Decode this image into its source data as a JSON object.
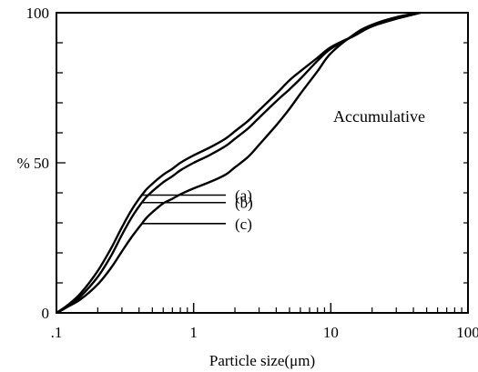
{
  "chart_data": {
    "type": "line",
    "title": "",
    "xlabel": "Particle size(μm)",
    "ylabel": "%",
    "x_scale": "log",
    "xlim": [
      0.1,
      100
    ],
    "ylim": [
      0,
      100
    ],
    "x_ticks": [
      {
        "value": 0.1,
        "label": ".1"
      },
      {
        "value": 1,
        "label": "1"
      },
      {
        "value": 10,
        "label": "10"
      },
      {
        "value": 100,
        "label": "100"
      }
    ],
    "y_ticks": [
      {
        "value": 0,
        "label": "0"
      },
      {
        "value": 50,
        "label": "% 50"
      },
      {
        "value": 100,
        "label": "100"
      }
    ],
    "grid": false,
    "annotation": "Accumulative",
    "series": [
      {
        "name": "(a)",
        "x": [
          0.1,
          0.12,
          0.15,
          0.2,
          0.25,
          0.3,
          0.35,
          0.4,
          0.45,
          0.5,
          0.6,
          0.7,
          0.8,
          1,
          1.3,
          1.7,
          2,
          2.5,
          3,
          4,
          5,
          6,
          8,
          10,
          15,
          20,
          30,
          45
        ],
        "y": [
          0,
          2.5,
          6.5,
          14,
          21.5,
          28.5,
          34,
          38,
          41,
          43,
          46,
          48,
          50,
          52.5,
          55,
          58,
          60.5,
          64,
          67.5,
          73,
          77.5,
          80.5,
          85,
          88.5,
          92.5,
          95.5,
          98,
          100
        ]
      },
      {
        "name": "(b)",
        "x": [
          0.1,
          0.12,
          0.15,
          0.2,
          0.25,
          0.3,
          0.35,
          0.4,
          0.45,
          0.5,
          0.6,
          0.7,
          0.8,
          1,
          1.3,
          1.7,
          2,
          2.5,
          3,
          4,
          5,
          6,
          8,
          10,
          15,
          20,
          30,
          45
        ],
        "y": [
          0,
          2,
          5.5,
          12,
          19,
          26,
          31.5,
          35.5,
          38.5,
          40.5,
          43.5,
          45.5,
          47.5,
          50,
          52.5,
          55.5,
          58,
          61.5,
          65,
          70.5,
          74.5,
          78,
          84,
          88,
          92.5,
          95.5,
          98,
          100
        ]
      },
      {
        "name": "(c)",
        "x": [
          0.1,
          0.12,
          0.15,
          0.2,
          0.25,
          0.3,
          0.35,
          0.4,
          0.45,
          0.5,
          0.6,
          0.7,
          0.8,
          1,
          1.3,
          1.7,
          2,
          2.5,
          3,
          4,
          5,
          6,
          8,
          10,
          15,
          20,
          30,
          45
        ],
        "y": [
          0,
          2,
          4.5,
          9.5,
          15,
          20.5,
          25,
          28.5,
          31.5,
          33.5,
          36.5,
          38,
          39.5,
          41.5,
          43.5,
          46,
          48.5,
          52,
          56,
          62.5,
          68,
          73,
          80.5,
          86.5,
          93,
          96,
          98.5,
          100
        ]
      }
    ]
  }
}
